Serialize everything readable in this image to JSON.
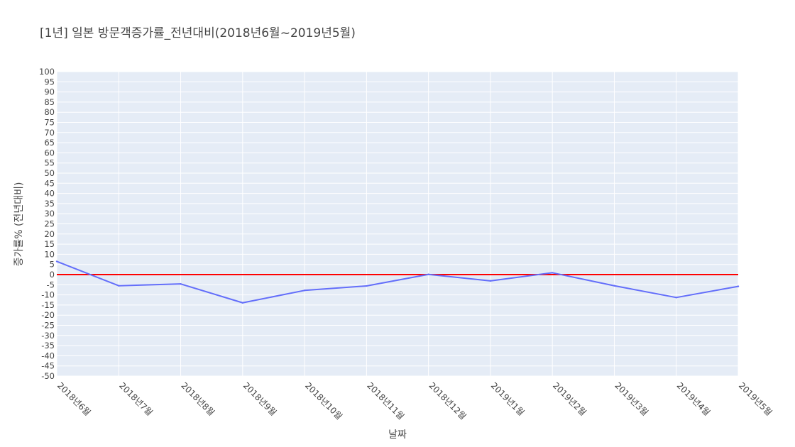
{
  "colors": {
    "plot_bg": "#e5ecf6",
    "grid": "#ffffff",
    "series": "#636efa",
    "reference": "#ff0000"
  },
  "chart_data": {
    "type": "line",
    "title": "[1년] 일본 방문객증가률_전년대비(2018년6월~2019년5월)",
    "xlabel": "날짜",
    "ylabel": "증가률% (전년대비)",
    "categories": [
      "2018년6월",
      "2018년7월",
      "2018년8월",
      "2018년9월",
      "2018년10월",
      "2018년11월",
      "2018년12월",
      "2019년1월",
      "2019년2월",
      "2019년3월",
      "2019년4월",
      "2019년5월"
    ],
    "series": [
      {
        "values": [
          6.5,
          -5.5,
          -4.6,
          -13.9,
          -7.8,
          -5.6,
          0.1,
          -3.1,
          0.9,
          -5.5,
          -11.3,
          -5.8
        ]
      }
    ],
    "reference_line": {
      "y": 0
    },
    "ylim": [
      -50,
      100
    ],
    "ytick_step": 5,
    "grid": true
  }
}
